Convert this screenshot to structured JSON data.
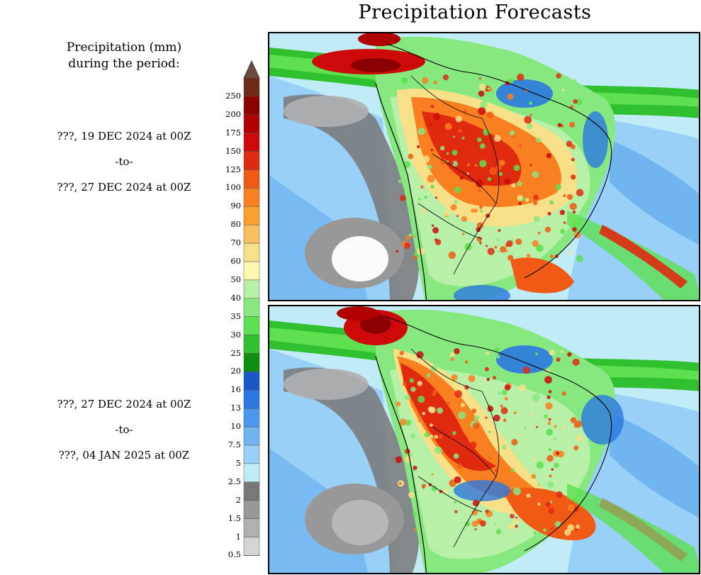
{
  "title": "Precipitation Forecasts",
  "legend_heading": {
    "line1": "Precipitation (mm)",
    "line2": "during the period:"
  },
  "periods": [
    {
      "start": "???, 19 DEC 2024 at 00Z",
      "sep": "-to-",
      "end": "???, 27 DEC 2024 at 00Z"
    },
    {
      "start": "???, 27 DEC 2024 at 00Z",
      "sep": "-to-",
      "end": "???, 04 JAN 2025 at 00Z"
    }
  ],
  "colorbar": {
    "labels": [
      "250",
      "200",
      "175",
      "150",
      "125",
      "100",
      "90",
      "80",
      "70",
      "60",
      "50",
      "40",
      "35",
      "30",
      "25",
      "20",
      "16",
      "13",
      "10",
      "7.5",
      "5",
      "2.5",
      "2",
      "1.5",
      "1",
      "0.5"
    ],
    "colors": [
      "#6d2a16",
      "#8b0000",
      "#b00000",
      "#cc0a0a",
      "#e02a10",
      "#f05a14",
      "#f88020",
      "#f8a030",
      "#f8c060",
      "#f8e088",
      "#fdf8b0",
      "#b8f0a8",
      "#88e880",
      "#5ee050",
      "#30c030",
      "#108e10",
      "#1a58c8",
      "#2a78e0",
      "#4a98f0",
      "#70b4f0",
      "#98d0f8",
      "#c0ecf8",
      "#787878",
      "#989898",
      "#b0b0b0",
      "#d4d4d4"
    ],
    "top_arrow_color": "#6d4a3e",
    "bottom_arrow_color": "#ffffff"
  },
  "maps": [
    {
      "name": "period-1-map",
      "period_index": 0
    },
    {
      "name": "period-2-map",
      "period_index": 1
    }
  ]
}
